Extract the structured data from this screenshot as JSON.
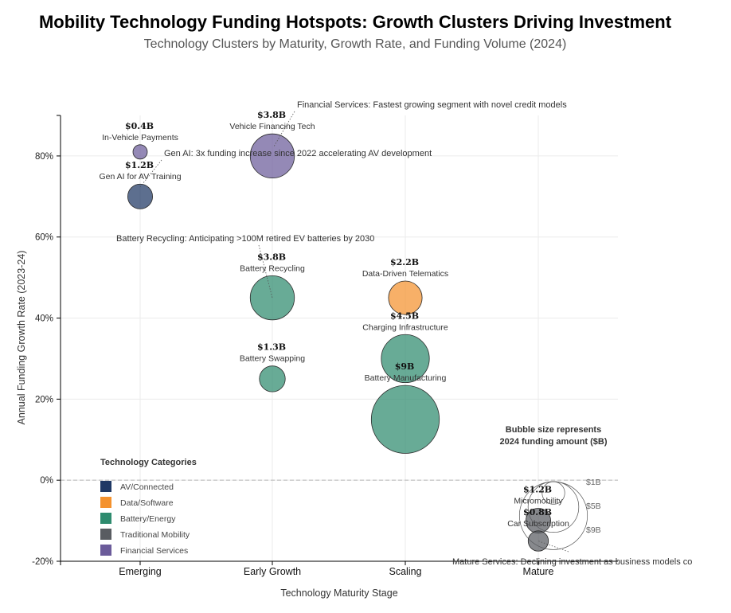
{
  "chart_data": {
    "type": "scatter",
    "title": "Mobility Technology Funding Hotspots: Growth Clusters Driving Investment",
    "subtitle": "Technology Clusters by Maturity, Growth Rate, and Funding Volume (2024)",
    "xlabel": "Technology Maturity Stage",
    "ylabel": "Annual Funding Growth Rate (2023-24)",
    "categories": [
      "Emerging",
      "Early Growth",
      "Scaling",
      "Mature"
    ],
    "ylim": [
      -20,
      90
    ],
    "yticks": [
      -20,
      0,
      20,
      40,
      60,
      80
    ],
    "ytick_labels": [
      "-20%",
      "0%",
      "20%",
      "40%",
      "60%",
      "80%"
    ],
    "grid": true,
    "zero_line": true,
    "points": [
      {
        "name": "In-Vehicle Payments",
        "stage": "Emerging",
        "growth": 81,
        "funding": 0.4,
        "value_label": "$0.4B",
        "category": "Financial Services"
      },
      {
        "name": "Gen AI for AV Training",
        "stage": "Emerging",
        "growth": 70,
        "funding": 1.2,
        "value_label": "$1.2B",
        "category": "AV/Connected"
      },
      {
        "name": "Vehicle Financing Tech",
        "stage": "Early Growth",
        "growth": 80,
        "funding": 3.8,
        "value_label": "$3.8B",
        "category": "Financial Services"
      },
      {
        "name": "Battery Recycling",
        "stage": "Early Growth",
        "growth": 45,
        "funding": 3.8,
        "value_label": "$3.8B",
        "category": "Battery/Energy"
      },
      {
        "name": "Battery Swapping",
        "stage": "Early Growth",
        "growth": 25,
        "funding": 1.3,
        "value_label": "$1.3B",
        "category": "Battery/Energy"
      },
      {
        "name": "Data-Driven Telematics",
        "stage": "Scaling",
        "growth": 45,
        "funding": 2.2,
        "value_label": "$2.2B",
        "category": "Data/Software"
      },
      {
        "name": "Charging Infrastructure",
        "stage": "Scaling",
        "growth": 30,
        "funding": 4.5,
        "value_label": "$4.5B",
        "category": "Battery/Energy"
      },
      {
        "name": "Battery Manufacturing",
        "stage": "Scaling",
        "growth": 15,
        "funding": 9,
        "value_label": "$9B",
        "category": "Battery/Energy"
      },
      {
        "name": "Micromobility",
        "stage": "Mature",
        "growth": -10,
        "funding": 1.2,
        "value_label": "$1.2B",
        "category": "Traditional Mobility"
      },
      {
        "name": "Car Subscription",
        "stage": "Mature",
        "growth": -15,
        "funding": 0.8,
        "value_label": "$0.8B",
        "category": "Traditional Mobility"
      }
    ],
    "annotations": [
      {
        "text": "Financial Services: Fastest growing segment with novel credit models",
        "target": "Vehicle Financing Tech"
      },
      {
        "text": "Gen AI: 3x funding increase since 2022 accelerating AV development",
        "target": "Gen AI for AV Training"
      },
      {
        "text": "Battery Recycling: Anticipating >100M retired EV batteries by 2030",
        "target": "Battery Recycling"
      },
      {
        "text": "Mature Services: Declining investment as business models co",
        "target": "Car Subscription"
      }
    ],
    "legend": {
      "title": "Technology Categories",
      "placement": "lower-left",
      "entries": [
        {
          "label": "AV/Connected",
          "color": "#1f3864"
        },
        {
          "label": "Data/Software",
          "color": "#f4922e"
        },
        {
          "label": "Battery/Energy",
          "color": "#2e8b6e"
        },
        {
          "label": "Traditional Mobility",
          "color": "#595c61"
        },
        {
          "label": "Financial Services",
          "color": "#6b5b9a"
        }
      ]
    },
    "size_legend": {
      "title_line1": "Bubble size represents",
      "title_line2": "2024 funding amount ($B)",
      "placement": "lower-right",
      "entries": [
        {
          "label": "$1B",
          "funding": 1
        },
        {
          "label": "$5B",
          "funding": 5
        },
        {
          "label": "$9B",
          "funding": 9
        }
      ]
    }
  }
}
